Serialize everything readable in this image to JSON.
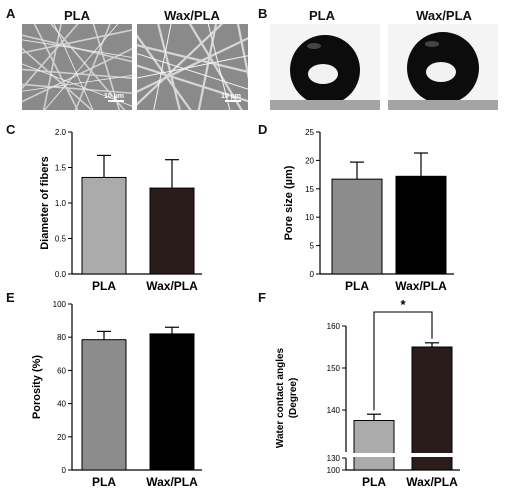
{
  "panels": {
    "A": {
      "letter": "A",
      "label_left": "PLA",
      "label_right": "Wax/PLA",
      "scale_left": "10 µm",
      "scale_right": "10 µm"
    },
    "B": {
      "letter": "B",
      "label_left": "PLA",
      "label_right": "Wax/PLA"
    },
    "C": {
      "letter": "C"
    },
    "D": {
      "letter": "D"
    },
    "E": {
      "letter": "E"
    },
    "F": {
      "letter": "F",
      "significance": "*"
    }
  },
  "colors": {
    "pla_light": "#ababab",
    "pla_mid": "#8c8c8c",
    "wax_dark": "#2a1c1a",
    "wax_black": "#000000"
  },
  "chart_data": [
    {
      "type": "bar",
      "categories": [
        "PLA",
        "Wax/PLA"
      ],
      "values": [
        1.36,
        1.21
      ],
      "errors": [
        0.31,
        0.4
      ],
      "ylabel": "Diameter of fibers",
      "ylim": [
        0,
        2.0
      ],
      "yticks": [
        "0.0",
        "0.5",
        "1.0",
        "1.5",
        "2.0"
      ],
      "tickvals": [
        0,
        0.5,
        1.0,
        1.5,
        2.0
      ]
    },
    {
      "type": "bar",
      "categories": [
        "PLA",
        "Wax/PLA"
      ],
      "values": [
        16.7,
        17.2
      ],
      "errors": [
        3.0,
        4.1
      ],
      "ylabel": "Pore size (µm)",
      "ylim": [
        0,
        25
      ],
      "yticks": [
        "0",
        "5",
        "10",
        "15",
        "20",
        "25"
      ],
      "tickvals": [
        0,
        5,
        10,
        15,
        20,
        25
      ]
    },
    {
      "type": "bar",
      "categories": [
        "PLA",
        "Wax/PLA"
      ],
      "values": [
        78.5,
        82.0
      ],
      "errors": [
        5.0,
        4.0
      ],
      "ylabel": "Porosity (%)",
      "ylim": [
        0,
        100
      ],
      "yticks": [
        "0",
        "20",
        "40",
        "60",
        "80",
        "100"
      ],
      "tickvals": [
        0,
        20,
        40,
        60,
        80,
        100
      ]
    },
    {
      "type": "bar",
      "categories": [
        "PLA",
        "Wax/PLA"
      ],
      "values": [
        137.5,
        155.0
      ],
      "errors": [
        1.5,
        1.0
      ],
      "ylabel": "Water contact angles (Degree)",
      "ylim": [
        100,
        160
      ],
      "yticks": [
        "100",
        "130",
        "140",
        "150",
        "160"
      ],
      "tickvals": [
        100,
        130,
        140,
        150,
        160
      ],
      "axis_break": [
        100,
        130
      ]
    }
  ]
}
